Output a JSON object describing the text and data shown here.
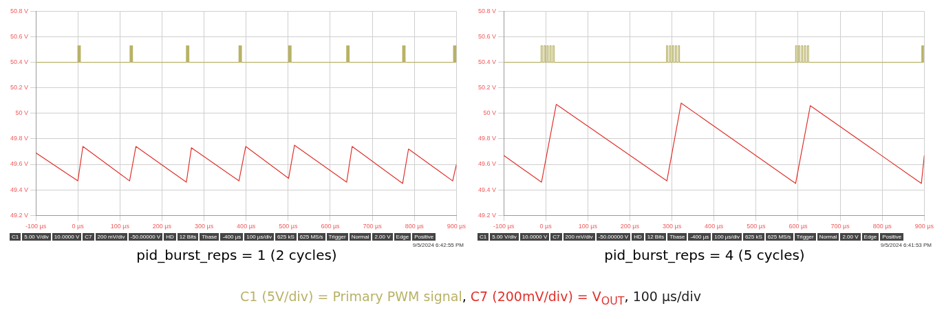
{
  "chart_data": [
    {
      "type": "line",
      "subtitle": "pid_burst_reps = 1 (2 cycles)",
      "xlim": [
        -100,
        900
      ],
      "ylim": [
        49.2,
        50.8
      ],
      "grid": true,
      "legend": false,
      "marker": "none",
      "line_style": "solid",
      "xticks": [
        {
          "value": -100,
          "label": "-100 µs"
        },
        {
          "value": 0,
          "label": "0 µs"
        },
        {
          "value": 100,
          "label": "100 µs"
        },
        {
          "value": 200,
          "label": "200 µs"
        },
        {
          "value": 300,
          "label": "300 µs"
        },
        {
          "value": 400,
          "label": "400 µs"
        },
        {
          "value": 500,
          "label": "500 µs"
        },
        {
          "value": 600,
          "label": "600 µs"
        },
        {
          "value": 700,
          "label": "700 µs"
        },
        {
          "value": 800,
          "label": "800 µs"
        },
        {
          "value": 900,
          "label": "900 µs"
        }
      ],
      "yticks": [
        {
          "value": 49.2,
          "label": "49.2 V"
        },
        {
          "value": 49.4,
          "label": "49.4 V"
        },
        {
          "value": 49.6,
          "label": "49.6 V"
        },
        {
          "value": 49.8,
          "label": "49.8 V"
        },
        {
          "value": 50,
          "label": "50 V"
        },
        {
          "value": 50.2,
          "label": "50.2 V"
        },
        {
          "value": 50.4,
          "label": "50.4 V"
        },
        {
          "value": 50.6,
          "label": "50.6 V"
        },
        {
          "value": 50.8,
          "label": "50.8 V"
        }
      ],
      "series": [
        {
          "color": "#b8b266",
          "x": [
            -100,
            0,
            0,
            2,
            2,
            4,
            4,
            6,
            6,
            124,
            124,
            126,
            126,
            128,
            128,
            130,
            130,
            258,
            258,
            260,
            260,
            262,
            262,
            264,
            264,
            383,
            383,
            385,
            385,
            387,
            387,
            389,
            389,
            501,
            501,
            503,
            503,
            505,
            505,
            507,
            507,
            639,
            639,
            641,
            641,
            643,
            643,
            645,
            645,
            772,
            772,
            774,
            774,
            776,
            776,
            778,
            778,
            893,
            893,
            895,
            895,
            897,
            897,
            899,
            899,
            900
          ],
          "values": [
            50.4,
            50.4,
            50.53,
            50.53,
            50.4,
            50.4,
            50.53,
            50.53,
            50.4,
            50.4,
            50.53,
            50.53,
            50.4,
            50.4,
            50.53,
            50.53,
            50.4,
            50.4,
            50.53,
            50.53,
            50.4,
            50.4,
            50.53,
            50.53,
            50.4,
            50.4,
            50.53,
            50.53,
            50.4,
            50.4,
            50.53,
            50.53,
            50.4,
            50.4,
            50.53,
            50.53,
            50.4,
            50.4,
            50.53,
            50.53,
            50.4,
            50.4,
            50.53,
            50.53,
            50.4,
            50.4,
            50.53,
            50.53,
            50.4,
            50.4,
            50.53,
            50.53,
            50.4,
            50.4,
            50.53,
            50.53,
            50.4,
            50.4,
            50.53,
            50.53,
            50.4,
            50.4,
            50.53,
            50.53,
            50.4,
            50.4
          ]
        },
        {
          "color": "#e0302a",
          "x": [
            -100,
            0,
            12,
            123,
            138,
            258,
            270,
            383,
            399,
            501,
            515,
            639,
            652,
            772,
            786,
            891,
            900
          ],
          "values": [
            49.69,
            49.47,
            49.74,
            49.47,
            49.74,
            49.46,
            49.73,
            49.47,
            49.74,
            49.49,
            49.75,
            49.46,
            49.74,
            49.45,
            49.72,
            49.47,
            49.6
          ]
        }
      ],
      "annotations": [
        "C1",
        "5.00 V/div",
        "10.0000 V",
        "C7",
        "200 mV/div",
        "-50.00000 V",
        "HD",
        "12 Bits",
        "Tbase",
        "-400 µs",
        "100 µs/div",
        "625 kS",
        "625 MS/s",
        "Trigger",
        "Normal",
        "2.00 V",
        "Edge",
        "Positive",
        "9/5/2024 6:42:55 PM"
      ]
    },
    {
      "type": "line",
      "subtitle": "pid_burst_reps = 4 (5 cycles)",
      "xlim": [
        -100,
        900
      ],
      "ylim": [
        49.2,
        50.8
      ],
      "grid": true,
      "legend": false,
      "marker": "none",
      "line_style": "solid",
      "xticks": [
        {
          "value": -100,
          "label": "-100 µs"
        },
        {
          "value": 0,
          "label": "0 µs"
        },
        {
          "value": 100,
          "label": "100 µs"
        },
        {
          "value": 200,
          "label": "200 µs"
        },
        {
          "value": 300,
          "label": "300 µs"
        },
        {
          "value": 400,
          "label": "400 µs"
        },
        {
          "value": 500,
          "label": "500 µs"
        },
        {
          "value": 600,
          "label": "600 µs"
        },
        {
          "value": 700,
          "label": "700 µs"
        },
        {
          "value": 800,
          "label": "800 µs"
        },
        {
          "value": 900,
          "label": "900 µs"
        }
      ],
      "yticks": [
        {
          "value": 49.2,
          "label": "49.2 V"
        },
        {
          "value": 49.4,
          "label": "49.4 V"
        },
        {
          "value": 49.6,
          "label": "49.6 V"
        },
        {
          "value": 49.8,
          "label": "49.8 V"
        },
        {
          "value": 50,
          "label": "50 V"
        },
        {
          "value": 50.2,
          "label": "50.2 V"
        },
        {
          "value": 50.4,
          "label": "50.4 V"
        },
        {
          "value": 50.6,
          "label": "50.6 V"
        },
        {
          "value": 50.8,
          "label": "50.8 V"
        }
      ],
      "series": [
        {
          "color": "#b8b266",
          "x": [
            -100,
            -11,
            -11,
            -8,
            -8,
            -4,
            -4,
            -1,
            -1,
            3,
            3,
            6,
            6,
            10,
            10,
            13,
            13,
            17,
            17,
            20,
            20,
            287,
            287,
            290,
            290,
            294,
            294,
            297,
            297,
            301,
            301,
            304,
            304,
            308,
            308,
            311,
            311,
            315,
            315,
            318,
            318,
            594,
            594,
            597,
            597,
            601,
            601,
            604,
            604,
            608,
            608,
            611,
            611,
            615,
            615,
            618,
            618,
            622,
            622,
            625,
            625,
            894,
            894,
            896,
            896,
            898,
            898,
            900
          ],
          "values": [
            50.4,
            50.4,
            50.53,
            50.53,
            50.4,
            50.4,
            50.53,
            50.53,
            50.4,
            50.4,
            50.53,
            50.53,
            50.4,
            50.4,
            50.53,
            50.53,
            50.4,
            50.4,
            50.53,
            50.53,
            50.4,
            50.4,
            50.53,
            50.53,
            50.4,
            50.4,
            50.53,
            50.53,
            50.4,
            50.4,
            50.53,
            50.53,
            50.4,
            50.4,
            50.53,
            50.53,
            50.4,
            50.4,
            50.53,
            50.53,
            50.4,
            50.4,
            50.53,
            50.53,
            50.4,
            50.4,
            50.53,
            50.53,
            50.4,
            50.4,
            50.53,
            50.53,
            50.4,
            50.4,
            50.53,
            50.53,
            50.4,
            50.4,
            50.53,
            50.53,
            50.4,
            50.4,
            50.53,
            50.53,
            50.4,
            50.4,
            50.53,
            50.53
          ]
        },
        {
          "color": "#e0302a",
          "x": [
            -100,
            -10,
            25,
            288,
            322,
            594,
            629,
            893,
            900
          ],
          "values": [
            49.67,
            49.46,
            50.07,
            49.47,
            50.08,
            49.45,
            50.06,
            49.45,
            49.67
          ]
        }
      ],
      "annotations": [
        "C1",
        "5.00 V/div",
        "10.0000 V",
        "C7",
        "200 mV/div",
        "-50.00000 V",
        "HD",
        "12 Bits",
        "Tbase",
        "-400 µs",
        "100 µs/div",
        "625 kS",
        "625 MS/s",
        "Trigger",
        "Normal",
        "2.00 V",
        "Edge",
        "Positive",
        "9/5/2024 6:41:53 PM",
        "C1 (5V/div) = Primary PWM signal, C7 (200mV/div) = V$_{OUT}$, 100 µs/div"
      ]
    }
  ]
}
